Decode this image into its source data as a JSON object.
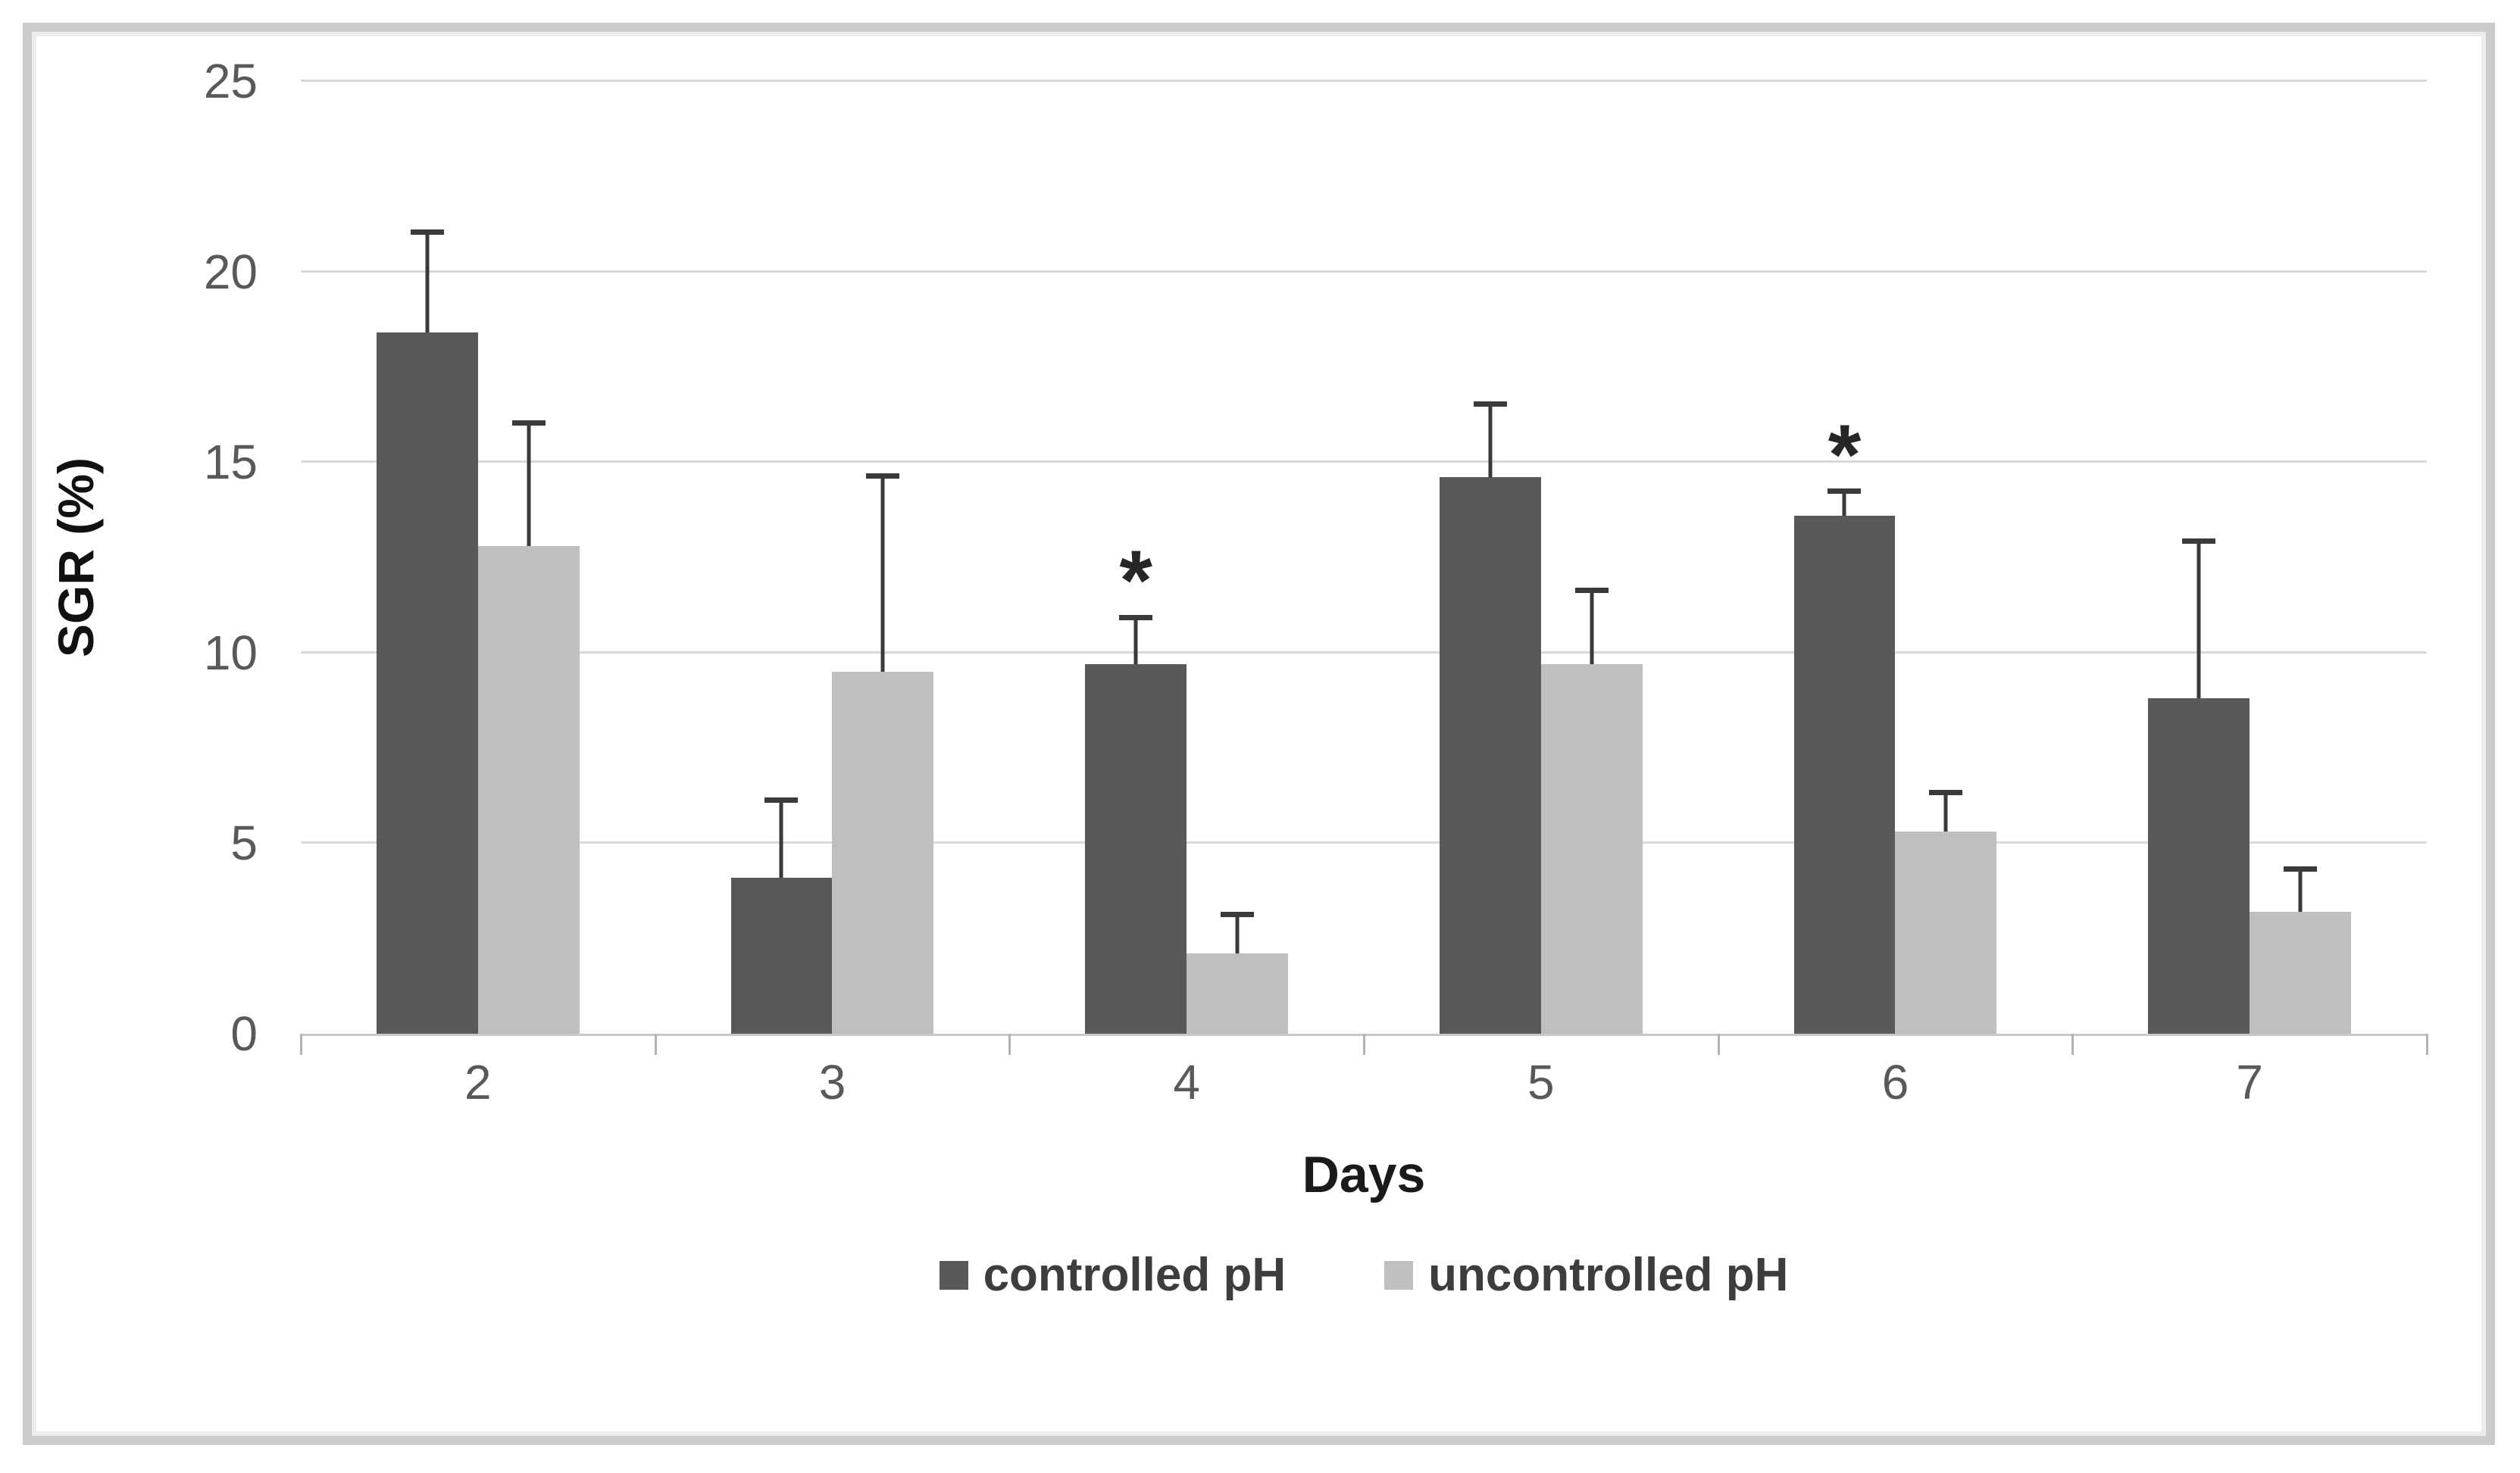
{
  "chart_data": {
    "type": "bar",
    "title": "",
    "xlabel": "Days",
    "ylabel": "SGR (%)",
    "categories": [
      "2",
      "3",
      "4",
      "5",
      "6",
      "7"
    ],
    "series": [
      {
        "name": "controlled pH",
        "color": "#595959",
        "values": [
          18.4,
          4.1,
          9.7,
          14.6,
          13.6,
          8.8
        ],
        "error_upper": [
          2.7,
          2.1,
          1.3,
          2.0,
          0.7,
          4.2
        ]
      },
      {
        "name": "uncontrolled pH",
        "color": "#bfbfbf",
        "values": [
          12.8,
          9.5,
          2.1,
          9.7,
          5.3,
          3.2
        ],
        "error_upper": [
          3.3,
          5.2,
          1.1,
          2.0,
          1.1,
          1.2
        ]
      }
    ],
    "significance_marks": [
      {
        "series_index": 0,
        "category": "4",
        "symbol": "*"
      },
      {
        "series_index": 0,
        "category": "6",
        "symbol": "*"
      }
    ],
    "ylim": [
      0,
      25
    ],
    "yticks": [
      0,
      5,
      10,
      15,
      20,
      25
    ],
    "grid": "horizontal",
    "legend_position": "bottom",
    "error_bars": "upper-only"
  },
  "styles": {
    "bar_dark": "#595959",
    "bar_light": "#bfbfbf",
    "gridline_color": "#d9d9d9",
    "axis_line_color": "#c9c9c9",
    "tick_label_color": "#595959",
    "axis_title_color": "#1a1a1a",
    "legend_text_color": "#3d3d3d",
    "error_bar_color": "#3a3a3a",
    "frame_border_color": "#cbcbcb",
    "background": "#ffffff"
  }
}
